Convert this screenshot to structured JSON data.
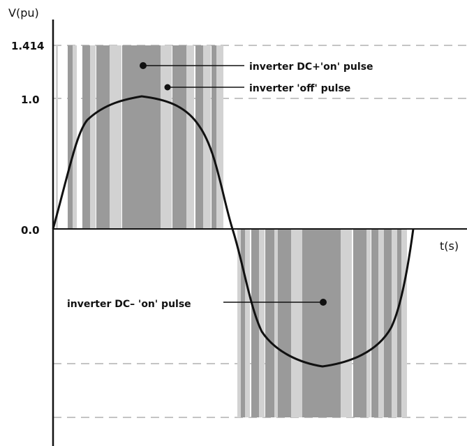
{
  "diagram": {
    "y_axis_label": "V(pu)",
    "x_axis_label": "t(s)",
    "y_ticks": [
      "1.414",
      "1.0",
      "0.0"
    ],
    "legend": {
      "dc_plus_on": "inverter DC+'on' pulse",
      "off": "inverter 'off' pulse",
      "dc_minus_on": "inverter DC– 'on' pulse"
    },
    "colors": {
      "on_pulse": "#9a9a9a",
      "off_pulse": "#d2d2d2",
      "curve": "#111111",
      "axis": "#111111",
      "dashed": "#b0b0b0"
    }
  }
}
